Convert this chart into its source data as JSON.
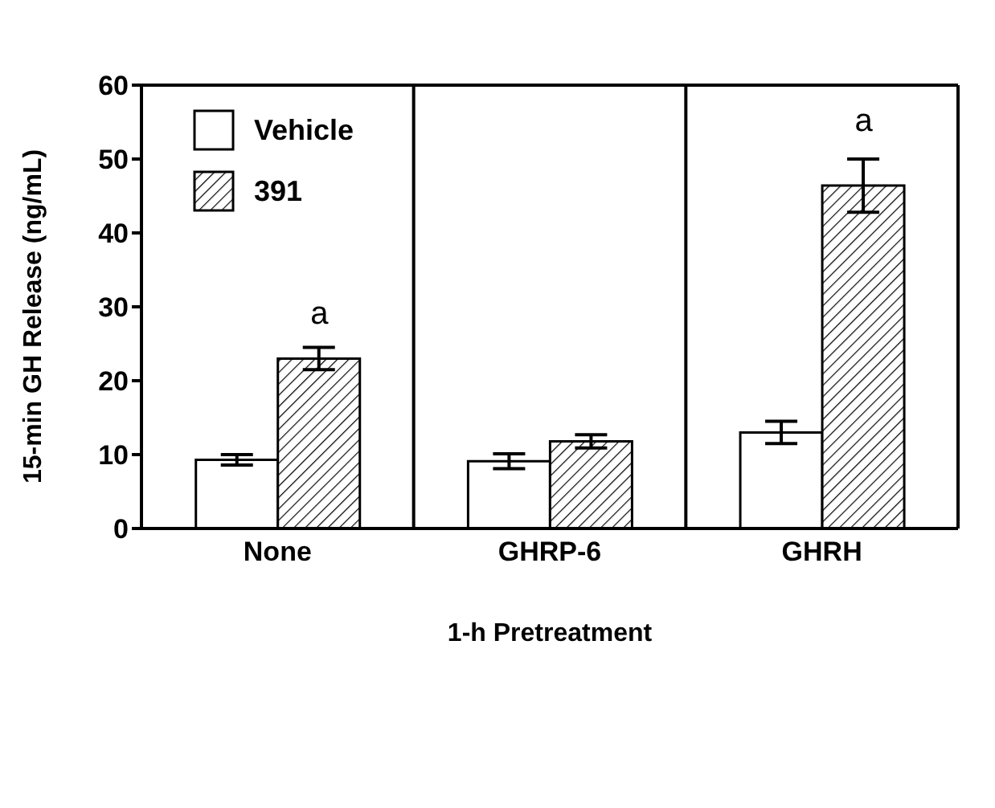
{
  "chart_data": {
    "type": "bar",
    "xlabel": "1-h Pretreatment",
    "ylabel": "15-min GH Release (ng/mL)",
    "categories": [
      "None",
      "GHRP-6",
      "GHRH"
    ],
    "series": [
      {
        "name": "Vehicle",
        "color": "#ffffff",
        "values": [
          9.3,
          9.1,
          13.0
        ],
        "errors": [
          0.7,
          1.0,
          1.5
        ]
      },
      {
        "name": "391",
        "color": "#000000",
        "values": [
          23.0,
          11.8,
          46.4
        ],
        "errors": [
          1.5,
          0.9,
          3.6
        ]
      }
    ],
    "ylim": [
      0,
      60
    ],
    "yticks": [
      0,
      10,
      20,
      30,
      40,
      50,
      60
    ],
    "grid": false,
    "legend": "top left",
    "annotations": [
      {
        "text": "a",
        "x": "None",
        "y": 23.0
      },
      {
        "text": "a",
        "x": "GHRH",
        "y": 46.4
      }
    ]
  }
}
